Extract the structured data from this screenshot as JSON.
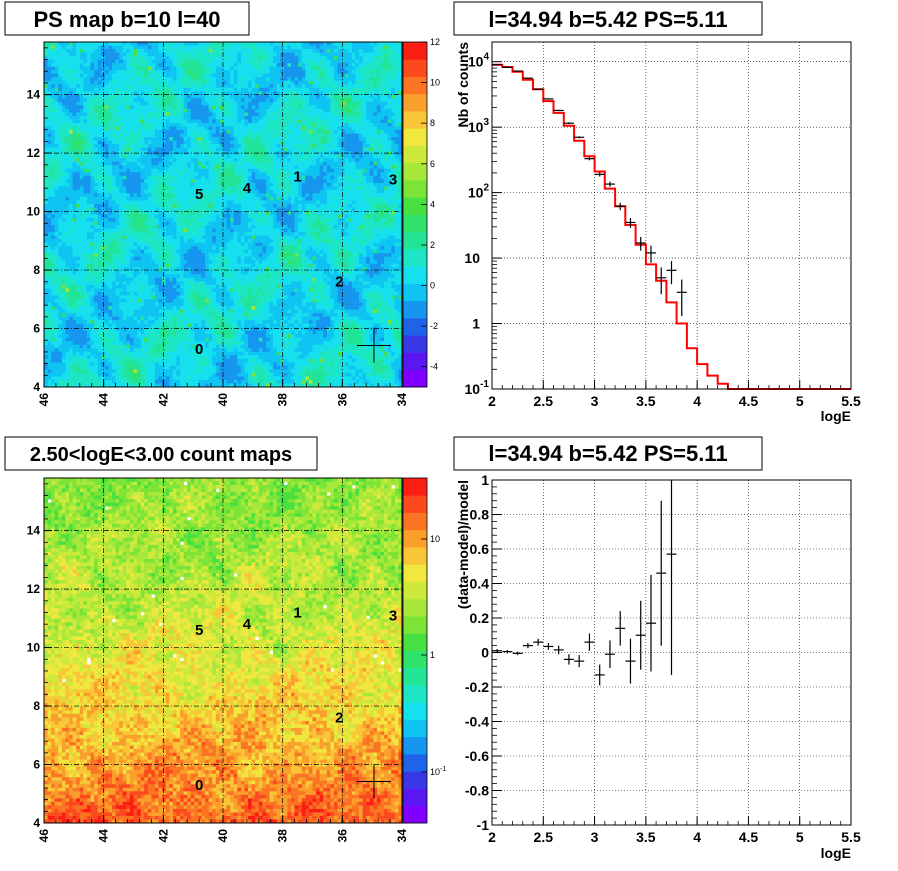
{
  "panels": [
    {
      "id": "ps_map",
      "title": "PS map b=10 l=40",
      "chart_data": {
        "type": "heatmap",
        "title": "PS map b=10 l=40",
        "x_ticks": [
          46,
          44,
          42,
          40,
          38,
          36,
          34
        ],
        "xlim": [
          46,
          34
        ],
        "y_ticks": [
          4,
          6,
          8,
          10,
          12,
          14
        ],
        "ylim": [
          4,
          15.8
        ],
        "colorbar_ticks": [
          -4,
          -2,
          0,
          2,
          4,
          6,
          8,
          10,
          12
        ],
        "zlim": [
          -5,
          12
        ],
        "grid": true,
        "source_labels": [
          {
            "label": "0",
            "x": 40.8,
            "y": 5.3
          },
          {
            "label": "1",
            "x": 37.5,
            "y": 11.2
          },
          {
            "label": "2",
            "x": 36.1,
            "y": 7.6
          },
          {
            "label": "3",
            "x": 34.3,
            "y": 11.1
          },
          {
            "label": "4",
            "x": 39.2,
            "y": 10.8
          },
          {
            "label": "5",
            "x": 40.8,
            "y": 10.6
          }
        ],
        "marker": {
          "x": 34.94,
          "y": 5.42
        }
      }
    },
    {
      "id": "spectrum",
      "title": "l=34.94 b=5.42 PS=5.11",
      "chart_data": {
        "type": "line",
        "title": "l=34.94 b=5.42 PS=5.11",
        "xlabel": "logE",
        "ylabel": "Nb of counts",
        "xlim": [
          2,
          5.5
        ],
        "ylim": [
          0.1,
          20000
        ],
        "log_y": true,
        "x_ticks": [
          2,
          2.5,
          3,
          3.5,
          4,
          4.5,
          5,
          5.5
        ],
        "y_ticks": [
          {
            "v": 0.1,
            "label": "10",
            "exp": "-1"
          },
          {
            "v": 1,
            "label": "1",
            "exp": ""
          },
          {
            "v": 10,
            "label": "10",
            "exp": ""
          },
          {
            "v": 100,
            "label": "10",
            "exp": "2"
          },
          {
            "v": 1000,
            "label": "10",
            "exp": "3"
          },
          {
            "v": 10000,
            "label": "10",
            "exp": "4"
          }
        ],
        "grid": true,
        "data_points": [
          {
            "x": 2.05,
            "y": 9000,
            "err": 100
          },
          {
            "x": 2.15,
            "y": 8200,
            "err": 100
          },
          {
            "x": 2.25,
            "y": 7200,
            "err": 90
          },
          {
            "x": 2.35,
            "y": 5600,
            "err": 80
          },
          {
            "x": 2.45,
            "y": 3800,
            "err": 60
          },
          {
            "x": 2.55,
            "y": 2700,
            "err": 50
          },
          {
            "x": 2.65,
            "y": 1800,
            "err": 40
          },
          {
            "x": 2.75,
            "y": 1150,
            "err": 35
          },
          {
            "x": 2.85,
            "y": 700,
            "err": 26
          },
          {
            "x": 2.95,
            "y": 330,
            "err": 18
          },
          {
            "x": 3.05,
            "y": 190,
            "err": 14
          },
          {
            "x": 3.15,
            "y": 135,
            "err": 12
          },
          {
            "x": 3.25,
            "y": 62,
            "err": 8
          },
          {
            "x": 3.35,
            "y": 35,
            "err": 6
          },
          {
            "x": 3.45,
            "y": 17,
            "err": 4
          },
          {
            "x": 3.55,
            "y": 12,
            "err": 3.5
          },
          {
            "x": 3.65,
            "y": 5,
            "err": 2.2
          },
          {
            "x": 3.75,
            "y": 6.5,
            "err": 2.5
          },
          {
            "x": 3.85,
            "y": 3,
            "err": 1.7
          }
        ],
        "model_steps": {
          "edges": [
            2,
            2.1,
            2.2,
            2.3,
            2.4,
            2.5,
            2.6,
            2.7,
            2.8,
            2.9,
            3.0,
            3.1,
            3.2,
            3.3,
            3.4,
            3.5,
            3.6,
            3.7,
            3.8,
            3.9,
            4.0,
            4.1,
            4.2,
            4.3,
            5.5
          ],
          "values": [
            9000,
            8300,
            7000,
            5300,
            3800,
            2500,
            1650,
            1050,
            620,
            360,
            210,
            115,
            62,
            32,
            16,
            8,
            4.5,
            2.1,
            1,
            0.42,
            0.24,
            0.16,
            0.12,
            0.1
          ]
        },
        "model_color": "#ff0000"
      }
    },
    {
      "id": "count_map",
      "title": "2.50<logE<3.00 count maps",
      "chart_data": {
        "type": "heatmap",
        "title": "2.50<logE<3.00 count maps",
        "x_ticks": [
          46,
          44,
          42,
          40,
          38,
          36,
          34
        ],
        "xlim": [
          46,
          34
        ],
        "y_ticks": [
          4,
          6,
          8,
          10,
          12,
          14
        ],
        "ylim": [
          4,
          15.8
        ],
        "colorbar_ticks": [
          {
            "label": "10",
            "exp": "-1"
          },
          {
            "label": "1",
            "exp": ""
          },
          {
            "label": "10",
            "exp": ""
          }
        ],
        "log_z": true,
        "grid": true,
        "source_labels": [
          {
            "label": "0",
            "x": 40.8,
            "y": 5.3
          },
          {
            "label": "1",
            "x": 37.5,
            "y": 11.2
          },
          {
            "label": "2",
            "x": 36.1,
            "y": 7.6
          },
          {
            "label": "3",
            "x": 34.3,
            "y": 11.1
          },
          {
            "label": "4",
            "x": 39.2,
            "y": 10.8
          },
          {
            "label": "5",
            "x": 40.8,
            "y": 10.6
          }
        ],
        "marker": {
          "x": 34.94,
          "y": 5.42
        }
      }
    },
    {
      "id": "residuals",
      "title": "l=34.94 b=5.42 PS=5.11",
      "chart_data": {
        "type": "scatter",
        "title": "l=34.94 b=5.42 PS=5.11",
        "xlabel": "logE",
        "ylabel": "(data-model)/model",
        "xlim": [
          2,
          5.5
        ],
        "ylim": [
          -1,
          1
        ],
        "x_ticks": [
          2,
          2.5,
          3,
          3.5,
          4,
          4.5,
          5,
          5.5
        ],
        "y_ticks": [
          -1,
          -0.8,
          -0.6,
          -0.4,
          -0.2,
          0,
          0.2,
          0.4,
          0.6,
          0.8,
          1
        ],
        "grid": true,
        "data_points": [
          {
            "x": 2.05,
            "y": 0.01,
            "err": 0.01
          },
          {
            "x": 2.15,
            "y": 0.005,
            "err": 0.01
          },
          {
            "x": 2.25,
            "y": -0.005,
            "err": 0.01
          },
          {
            "x": 2.35,
            "y": 0.04,
            "err": 0.015
          },
          {
            "x": 2.45,
            "y": 0.06,
            "err": 0.02
          },
          {
            "x": 2.55,
            "y": 0.035,
            "err": 0.02
          },
          {
            "x": 2.65,
            "y": 0.015,
            "err": 0.025
          },
          {
            "x": 2.75,
            "y": -0.04,
            "err": 0.03
          },
          {
            "x": 2.85,
            "y": -0.05,
            "err": 0.035
          },
          {
            "x": 2.95,
            "y": 0.06,
            "err": 0.05
          },
          {
            "x": 3.05,
            "y": -0.13,
            "err": 0.06
          },
          {
            "x": 3.15,
            "y": -0.01,
            "err": 0.08
          },
          {
            "x": 3.25,
            "y": 0.14,
            "err": 0.1
          },
          {
            "x": 3.35,
            "y": -0.05,
            "err": 0.13
          },
          {
            "x": 3.45,
            "y": 0.1,
            "err": 0.2
          },
          {
            "x": 3.55,
            "y": 0.17,
            "err": 0.28
          },
          {
            "x": 3.65,
            "y": 0.46,
            "err": 0.42
          },
          {
            "x": 3.75,
            "y": 0.57,
            "err": 0.7
          }
        ]
      }
    }
  ]
}
